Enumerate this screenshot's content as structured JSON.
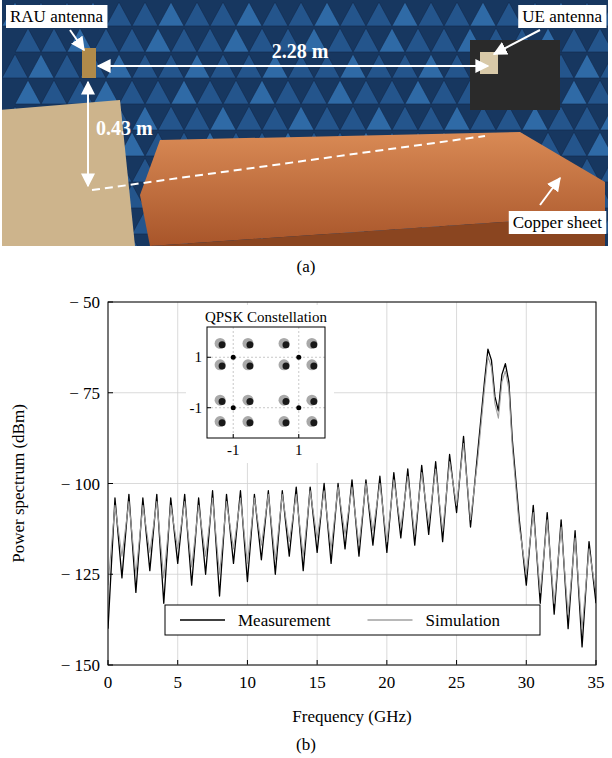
{
  "photo": {
    "rau_label": "RAU antenna",
    "ue_label": "UE antenna",
    "copper_label": "Copper sheet",
    "distance": "2.28 m",
    "height": "0.43 m",
    "caption": "(a)"
  },
  "chart_data": [
    {
      "type": "line",
      "caption": "(b)",
      "x_label": "Frequency (GHz)",
      "y_label": "Power spectrum (dBm)",
      "xlim": [
        0,
        35
      ],
      "ylim": [
        -150,
        -50
      ],
      "xticks": [
        0,
        5,
        10,
        15,
        20,
        25,
        30,
        35
      ],
      "yticks": [
        {
          "value": -150,
          "label": "− 150"
        },
        {
          "value": -125,
          "label": "− 125"
        },
        {
          "value": -100,
          "label": "− 100"
        },
        {
          "value": -75,
          "label": "− 75"
        },
        {
          "value": -50,
          "label": "− 50"
        }
      ],
      "grid": true,
      "legend": "bottom",
      "x": [
        0,
        0.5,
        1,
        1.5,
        2,
        2.5,
        3,
        3.5,
        4,
        4.5,
        5,
        5.5,
        6,
        6.5,
        7,
        7.5,
        8,
        8.5,
        9,
        9.5,
        10,
        10.5,
        11,
        11.5,
        12,
        12.5,
        13,
        13.5,
        14,
        14.5,
        15,
        15.5,
        16,
        16.5,
        17,
        17.5,
        18,
        18.5,
        19,
        19.5,
        20,
        20.5,
        21,
        21.5,
        22,
        22.5,
        23,
        23.5,
        24,
        24.5,
        25,
        25.5,
        26,
        26.5,
        27,
        27.25,
        27.5,
        27.75,
        28,
        28.25,
        28.5,
        28.75,
        29,
        29.5,
        30,
        30.5,
        31,
        31.5,
        32,
        32.5,
        33,
        33.5,
        34,
        34.5,
        35
      ],
      "series": [
        {
          "name": "Measurement",
          "color": "#000000",
          "values": [
            -140,
            -104,
            -126,
            -103,
            -130,
            -104,
            -124,
            -103,
            -133,
            -104,
            -122,
            -103,
            -128,
            -104,
            -125,
            -102,
            -131,
            -103,
            -122,
            -102,
            -127,
            -103,
            -121,
            -102,
            -125,
            -102,
            -120,
            -101,
            -124,
            -101,
            -119,
            -100,
            -122,
            -100,
            -118,
            -99,
            -120,
            -99,
            -117,
            -98,
            -119,
            -97,
            -115,
            -96,
            -117,
            -95,
            -114,
            -94,
            -116,
            -92,
            -108,
            -87,
            -112,
            -92,
            -72,
            -63,
            -66,
            -76,
            -80,
            -70,
            -67,
            -72,
            -88,
            -110,
            -128,
            -106,
            -133,
            -108,
            -136,
            -110,
            -140,
            -113,
            -145,
            -116,
            -133
          ]
        },
        {
          "name": "Simulation",
          "color": "#a0a0a0",
          "values": [
            -128,
            -106,
            -120,
            -105,
            -125,
            -106,
            -119,
            -105,
            -126,
            -106,
            -118,
            -105,
            -123,
            -106,
            -120,
            -104,
            -125,
            -105,
            -118,
            -104,
            -122,
            -104,
            -117,
            -103,
            -121,
            -103,
            -116,
            -103,
            -120,
            -102,
            -115,
            -102,
            -118,
            -101,
            -114,
            -101,
            -117,
            -100,
            -113,
            -100,
            -116,
            -99,
            -112,
            -98,
            -114,
            -97,
            -111,
            -96,
            -113,
            -94,
            -106,
            -89,
            -110,
            -94,
            -74,
            -65,
            -68,
            -78,
            -82,
            -72,
            -69,
            -74,
            -90,
            -112,
            -125,
            -108,
            -130,
            -110,
            -133,
            -112,
            -136,
            -115,
            -140,
            -118,
            -130
          ]
        }
      ]
    },
    {
      "type": "scatter",
      "title": "QPSK Constellation",
      "xlim": [
        -1.8,
        1.8
      ],
      "ylim": [
        -2.2,
        2.2
      ],
      "xticks": [
        -1,
        1
      ],
      "yticks": [
        -1,
        1
      ],
      "grid": true,
      "series": [
        {
          "color": "#9a9a9a",
          "marker": "circle",
          "x": [
            -1.4,
            -0.55,
            0.55,
            1.4,
            -1.4,
            -0.55,
            0.55,
            1.4,
            -1.4,
            -0.55,
            0.55,
            1.4,
            -1.4,
            -0.55,
            0.55,
            1.4
          ],
          "values": [
            1.55,
            1.55,
            1.55,
            1.55,
            0.7,
            0.7,
            0.7,
            0.7,
            -0.7,
            -0.7,
            -0.7,
            -0.7,
            -1.55,
            -1.55,
            -1.55,
            -1.55
          ]
        },
        {
          "color": "#000000",
          "marker": "circle",
          "x": [
            -1.34,
            -0.49,
            0.61,
            1.46,
            -1.34,
            -0.49,
            0.61,
            1.46,
            -1.34,
            -0.49,
            0.61,
            1.46,
            -1.34,
            -0.49,
            0.61,
            1.46
          ],
          "values": [
            1.5,
            1.5,
            1.5,
            1.5,
            0.65,
            0.65,
            0.65,
            0.65,
            -0.75,
            -0.75,
            -0.75,
            -0.75,
            -1.6,
            -1.6,
            -1.6,
            -1.6
          ]
        },
        {
          "color": "#000000",
          "marker": "dot",
          "x": [
            -1,
            1,
            -1,
            1
          ],
          "values": [
            1,
            1,
            -1,
            -1
          ]
        }
      ]
    }
  ]
}
